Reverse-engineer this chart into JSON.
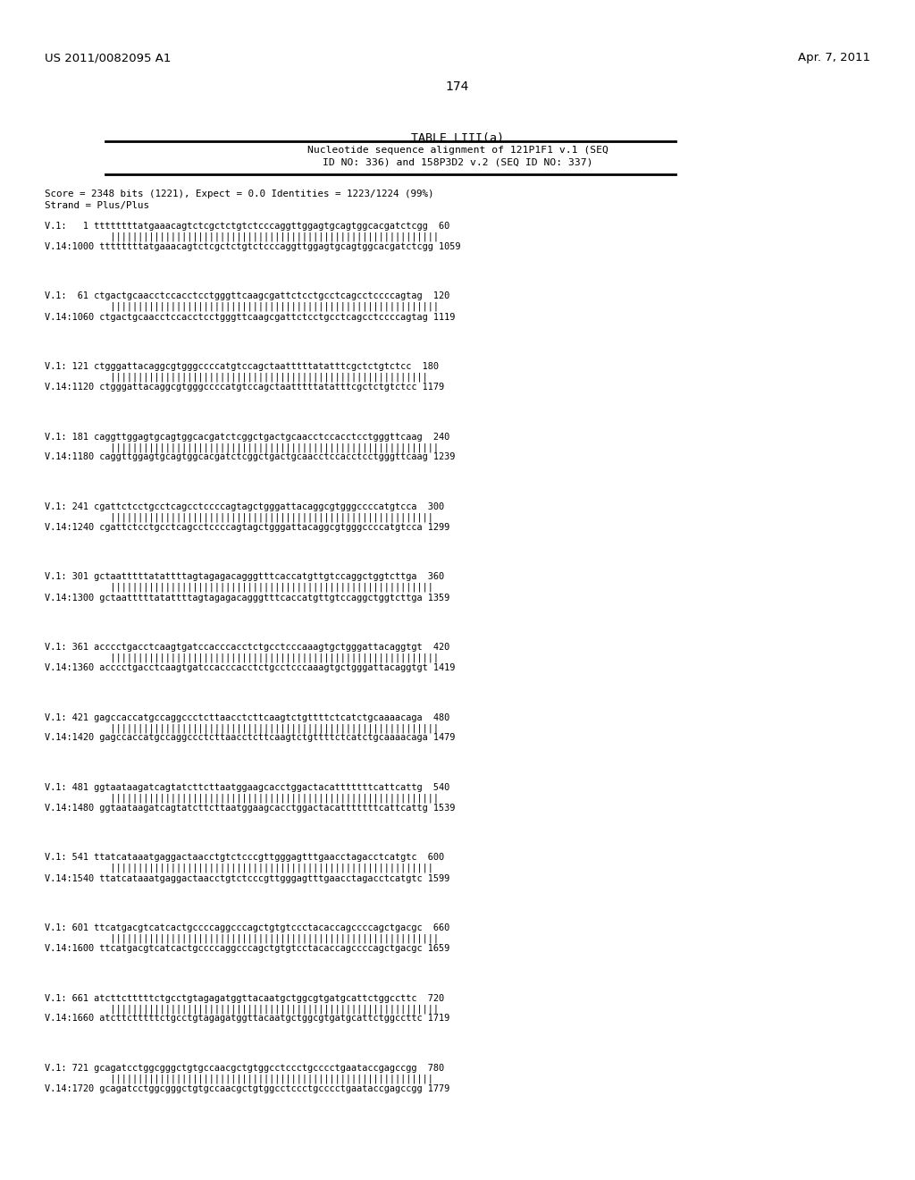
{
  "header_left": "US 2011/0082095 A1",
  "header_right": "Apr. 7, 2011",
  "page_number": "174",
  "table_title": "TABLE LIII(a)",
  "table_subtitle_line1": "Nucleotide sequence alignment of 121P1F1 v.1 (SEQ",
  "table_subtitle_line2": "ID NO: 336) and 158P3D2 v.2 (SEQ ID NO: 337)",
  "score_line1": "Score = 2348 bits (1221), Expect = 0.0 Identities = 1223/1224 (99%)",
  "score_line2": "Strand = Plus/Plus",
  "background_color": "#ffffff",
  "text_color": "#000000",
  "sequences": [
    {
      "v1_prefix": "V.1:   1",
      "v1_seq": "ttttttttatgaaacagtctcgctctgtctcccaggttggagtgcagtggcacgatctcgg",
      "v1_end": "60",
      "bars": "            ||||||||||||||||||||||||||||||||||||||||||||||||||||||||||||",
      "v14_prefix": "V.14:1000",
      "v14_seq": "ttttttttatgaaacagtctcgctctgtctcccaggttggagtgcagtggcacgatctcgg",
      "v14_end": "1059"
    },
    {
      "v1_prefix": "V.1:  61",
      "v1_seq": "ctgactgcaacctccacctcctgggttcaagcgattctcctgcctcagcctccccagtag",
      "v1_end": "120",
      "bars": "            ||||||||||||||||||||||||||||||||||||||||||||||||||||||||||||",
      "v14_prefix": "V.14:1060",
      "v14_seq": "ctgactgcaacctccacctcctgggttcaagcgattctcctgcctcagcctccccagtag",
      "v14_end": "1119"
    },
    {
      "v1_prefix": "V.1: 121",
      "v1_seq": "ctgggattacaggcgtgggccccatgtccagctaatttttatatttcgctctgtctcc",
      "v1_end": "180",
      "bars": "            ||||||||||||||||||||||||||||||||||||||||||||||||||||||||||",
      "v14_prefix": "V.14:1120",
      "v14_seq": "ctgggattacaggcgtgggccccatgtccagctaatttttatatttcgctctgtctcc",
      "v14_end": "1179"
    },
    {
      "v1_prefix": "V.1: 181",
      "v1_seq": "caggttggagtgcagtggcacgatctcggctgactgcaacctccacctcctgggttcaag",
      "v1_end": "240",
      "bars": "            ||||||||||||||||||||||||||||||||||||||||||||||||||||||||||||",
      "v14_prefix": "V.14:1180",
      "v14_seq": "caggttggagtgcagtggcacgatctcggctgactgcaacctccacctcctgggttcaag",
      "v14_end": "1239"
    },
    {
      "v1_prefix": "V.1: 241",
      "v1_seq": "cgattctcctgcctcagcctccccagtagctgggattacaggcgtgggccccatgtcca",
      "v1_end": "300",
      "bars": "            |||||||||||||||||||||||||||||||||||||||||||||||||||||||||||",
      "v14_prefix": "V.14:1240",
      "v14_seq": "cgattctcctgcctcagcctccccagtagctgggattacaggcgtgggccccatgtcca",
      "v14_end": "1299"
    },
    {
      "v1_prefix": "V.1: 301",
      "v1_seq": "gctaatttttatattttagtagagacagggtttcaccatgttgtccaggctggtcttga",
      "v1_end": "360",
      "bars": "            |||||||||||||||||||||||||||||||||||||||||||||||||||||||||||",
      "v14_prefix": "V.14:1300",
      "v14_seq": "gctaatttttatattttagtagagacagggtttcaccatgttgtccaggctggtcttga",
      "v14_end": "1359"
    },
    {
      "v1_prefix": "V.1: 361",
      "v1_seq": "acccctgacctcaagtgatccacccacctctgcctcccaaagtgctgggattacaggtgt",
      "v1_end": "420",
      "bars": "            ||||||||||||||||||||||||||||||||||||||||||||||||||||||||||||",
      "v14_prefix": "V.14:1360",
      "v14_seq": "acccctgacctcaagtgatccacccacctctgcctcccaaagtgctgggattacaggtgt",
      "v14_end": "1419"
    },
    {
      "v1_prefix": "V.1: 421",
      "v1_seq": "gagccaccatgccaggccctcttaacctcttcaagtctgttttctcatctgcaaaacaga",
      "v1_end": "480",
      "bars": "            ||||||||||||||||||||||||||||||||||||||||||||||||||||||||||||",
      "v14_prefix": "V.14:1420",
      "v14_seq": "gagccaccatgccaggccctcttaacctcttcaagtctgttttctcatctgcaaaacaga",
      "v14_end": "1479"
    },
    {
      "v1_prefix": "V.1: 481",
      "v1_seq": "ggtaataagatcagtatcttcttaatggaagcacctggactacatttttttcattcattg",
      "v1_end": "540",
      "bars": "            ||||||||||||||||||||||||||||||||||||||||||||||||||||||||||||",
      "v14_prefix": "V.14:1480",
      "v14_seq": "ggtaataagatcagtatcttcttaatggaagcacctggactacatttttttcattcattg",
      "v14_end": "1539"
    },
    {
      "v1_prefix": "V.1: 541",
      "v1_seq": "ttatcataaatgaggactaacctgtctcccgttgggagtttgaacctagacctcatgtc",
      "v1_end": "600",
      "bars": "            |||||||||||||||||||||||||||||||||||||||||||||||||||||||||||",
      "v14_prefix": "V.14:1540",
      "v14_seq": "ttatcataaatgaggactaacctgtctcccgttgggagtttgaacctagacctcatgtc",
      "v14_end": "1599"
    },
    {
      "v1_prefix": "V.1: 601",
      "v1_seq": "ttcatgacgtcatcactgccccaggcccagctgtgtccctacaccagccccagctgacgc",
      "v1_end": "660",
      "bars": "            ||||||||||||||||||||||||||||||||||||||||||||||||||||||||||||",
      "v14_prefix": "V.14:1600",
      "v14_seq": "ttcatgacgtcatcactgccccaggcccagctgtgtcctacaccagccccagctgacgc",
      "v14_end": "1659"
    },
    {
      "v1_prefix": "V.1: 661",
      "v1_seq": "atcttctttttctgcctgtagagatggttacaatgctggcgtgatgcattctggccttc",
      "v1_end": "720",
      "bars": "            ||||||||||||||||||||||||||||||||||||||||||||||||||||||||||||",
      "v14_prefix": "V.14:1660",
      "v14_seq": "atcttctttttctgcctgtagagatggttacaatgctggcgtgatgcattctggccttc",
      "v14_end": "1719"
    },
    {
      "v1_prefix": "V.1: 721",
      "v1_seq": "gcagatcctggcgggctgtgccaacgctgtggcctccctgcccctgaataccgagccgg",
      "v1_end": "780",
      "bars": "            |||||||||||||||||||||||||||||||||||||||||||||||||||||||||||",
      "v14_prefix": "V.14:1720",
      "v14_seq": "gcagatcctggcgggctgtgccaacgctgtggcctccctgcccctgaataccgagccgg",
      "v14_end": "1779"
    }
  ]
}
